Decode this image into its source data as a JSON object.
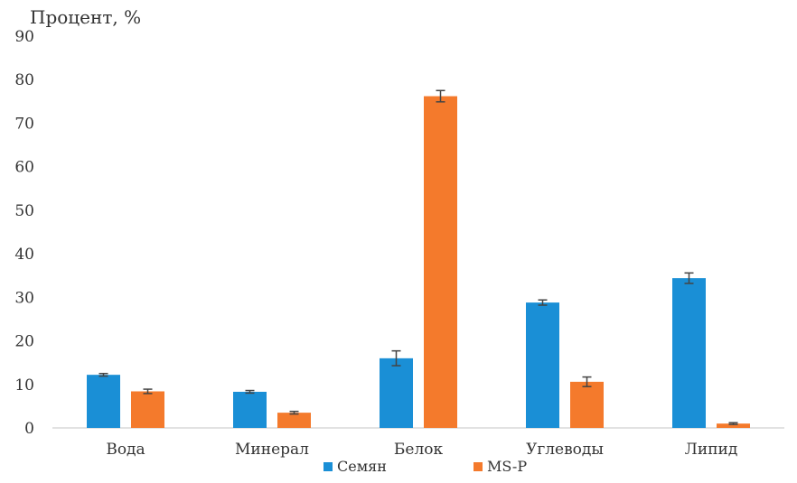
{
  "chart_data": {
    "type": "bar",
    "ylabel": "Процент, %",
    "categories": [
      "Вода",
      "Минерал",
      "Белок",
      "Углеводы",
      "Липид"
    ],
    "series": [
      {
        "name": "Семян",
        "color": "#1a8fd6",
        "values": [
          12.2,
          8.3,
          16.0,
          28.8,
          34.4
        ],
        "errors": [
          0.3,
          0.3,
          1.7,
          0.6,
          1.2
        ]
      },
      {
        "name": "MS-P",
        "color": "#f47a2c",
        "values": [
          8.4,
          3.5,
          76.2,
          10.6,
          1.0
        ],
        "errors": [
          0.5,
          0.3,
          1.3,
          1.1,
          0.2
        ]
      }
    ],
    "ylim": [
      0,
      90
    ],
    "yticks": [
      0,
      10,
      20,
      30,
      40,
      50,
      60,
      70,
      80,
      90
    ],
    "grid": false,
    "legend": "bottom-center"
  }
}
